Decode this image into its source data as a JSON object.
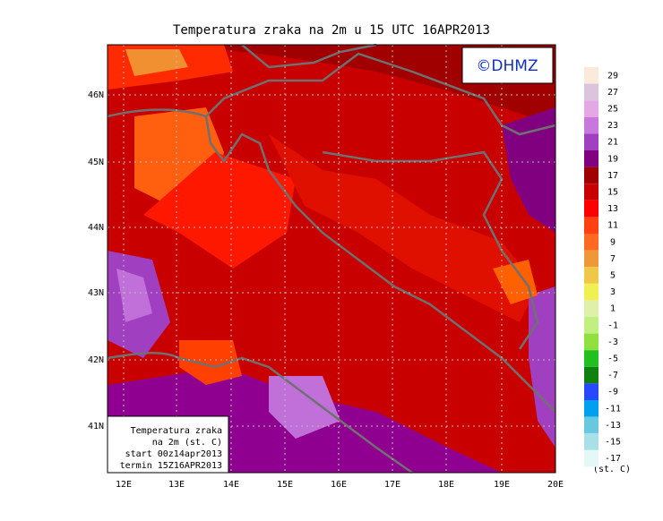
{
  "title": "Temperatura zraka na 2m u 15 UTC 16APR2013",
  "copyright": "©DHMZ",
  "latitude_labels": [
    "46N",
    "45N",
    "44N",
    "43N",
    "42N",
    "41N"
  ],
  "longitude_labels": [
    "12E",
    "13E",
    "14E",
    "15E",
    "16E",
    "17E",
    "18E",
    "19E",
    "20E"
  ],
  "legend": {
    "values": [
      29,
      27,
      25,
      23,
      21,
      19,
      17,
      15,
      13,
      11,
      9,
      7,
      5,
      3,
      1,
      -1,
      -3,
      -5,
      -7,
      -9,
      -11,
      -13,
      -15,
      -17
    ],
    "unit": "(st. C)"
  },
  "info_box": [
    "Temperatura zraka",
    "na 2m (st. C)",
    "start 00z14apr2013",
    "termin 15Z16APR2013"
  ]
}
